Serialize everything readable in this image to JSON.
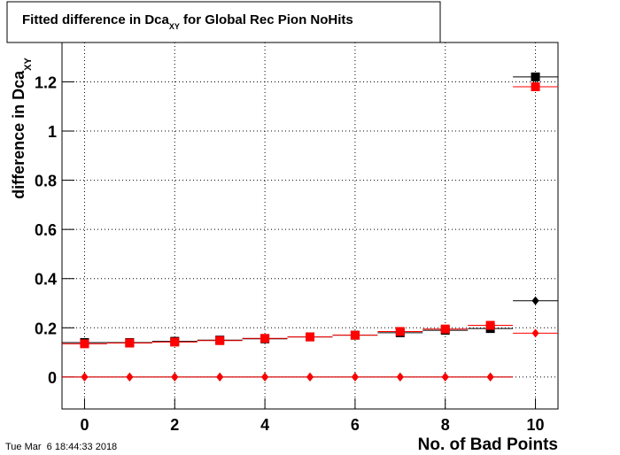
{
  "chart_data": {
    "type": "scatter",
    "title": "Fitted difference in Dca",
    "title_subscript": "XY",
    "title_end": " for Global Rec Pion NoHits",
    "y_label": "difference in Dca",
    "y_label_subscript": "XY",
    "x_label": "No. of Bad Points",
    "timestamp": "Tue Mar  6 18:44:33 2018",
    "x": [
      0,
      1,
      2,
      3,
      4,
      5,
      6,
      7,
      8,
      9,
      10
    ],
    "x_error": 0.5,
    "xlim": [
      -0.5,
      10.5
    ],
    "xticks": [
      0,
      2,
      4,
      6,
      8,
      10
    ],
    "ylim": [
      -0.13,
      1.36
    ],
    "yticks": [
      0,
      0.2,
      0.4,
      0.6,
      0.8,
      1,
      1.2
    ],
    "grid": true,
    "series": [
      {
        "color": "#000000",
        "marker": "square",
        "values": [
          0.14,
          0.14,
          0.145,
          0.15,
          0.155,
          0.163,
          0.17,
          0.18,
          0.19,
          0.197,
          1.22
        ]
      },
      {
        "color": "#ff0000",
        "marker": "square",
        "values": [
          0.135,
          0.138,
          0.142,
          0.148,
          0.157,
          0.163,
          0.17,
          0.185,
          0.195,
          0.21,
          1.18
        ]
      },
      {
        "color": "#000000",
        "marker": "diamond",
        "values": [
          0,
          0,
          0,
          0,
          0,
          0,
          0,
          0,
          0,
          0,
          0.31
        ]
      },
      {
        "color": "#ff0000",
        "marker": "diamond",
        "values": [
          0,
          0,
          0,
          0,
          0,
          0,
          0,
          0,
          0,
          0,
          0.178
        ]
      }
    ]
  }
}
